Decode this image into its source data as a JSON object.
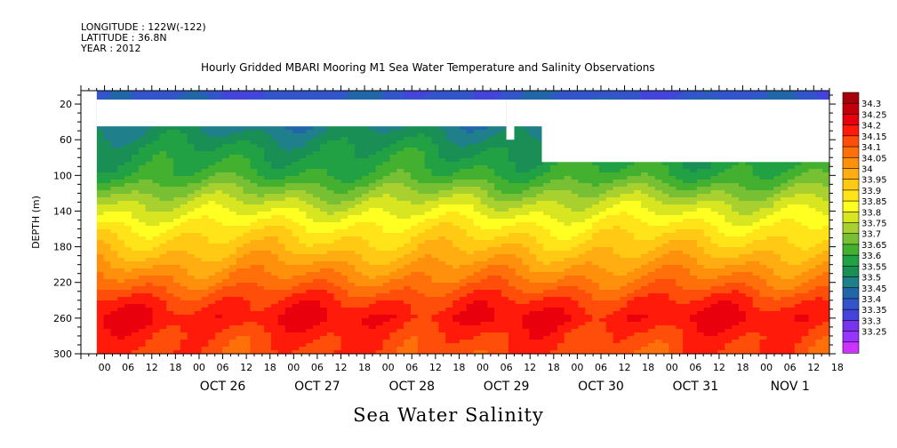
{
  "header": {
    "longitude": "LONGITUDE : 122W(-122)",
    "latitude": "LATITUDE : 36.8N",
    "year": "YEAR : 2012",
    "title": "Hourly Gridded MBARI Mooring M1 Sea Water Temperature and Salinity Observations"
  },
  "footer": {
    "variable_label": "Sea Water Salinity"
  },
  "colors": {
    "palette": [
      "#cc33ff",
      "#9933ff",
      "#7733ee",
      "#4444dd",
      "#3355cc",
      "#2266aa",
      "#1f7f8a",
      "#1a8f55",
      "#22a044",
      "#44b030",
      "#77c033",
      "#a8d02e",
      "#d8e622",
      "#ffff22",
      "#ffe41a",
      "#ffc914",
      "#ffad10",
      "#ff900c",
      "#ff700a",
      "#ff4d0a",
      "#ff1a0a",
      "#e8000c",
      "#c2000c",
      "#a80008"
    ],
    "colorbar_labels": [
      "34.3",
      "34.25",
      "34.2",
      "34.15",
      "34.1",
      "34.05",
      "34",
      "33.95",
      "33.9",
      "33.85",
      "33.8",
      "33.75",
      "33.7",
      "33.65",
      "33.6",
      "33.55",
      "33.5",
      "33.45",
      "33.4",
      "33.35",
      "33.3",
      "33.25"
    ]
  },
  "chart_data": {
    "type": "heatmap",
    "variable": "Sea Water Salinity",
    "ylabel": "DEPTH (m)",
    "y_reversed": true,
    "ylim": [
      300,
      5
    ],
    "y_ticks": [
      20,
      60,
      100,
      140,
      180,
      220,
      260,
      300
    ],
    "x_start": "2012-10-25T00:00",
    "x_end": "2012-11-01T22:00",
    "x_hour_ticks": [
      "00",
      "06",
      "12",
      "18",
      "00",
      "06",
      "12",
      "18",
      "00",
      "06",
      "12",
      "18",
      "00",
      "06",
      "12",
      "18",
      "00",
      "06",
      "12",
      "18",
      "00",
      "06",
      "12",
      "18",
      "00",
      "06",
      "12",
      "18",
      "00",
      "06",
      "12",
      "18"
    ],
    "x_day_labels": [
      "OCT 26",
      "OCT 27",
      "OCT 28",
      "OCT 29",
      "OCT 30",
      "OCT 31",
      "NOV  1"
    ],
    "data_start": "2012-10-25T04:00",
    "levels": [
      33.25,
      33.3,
      33.35,
      33.4,
      33.45,
      33.5,
      33.55,
      33.6,
      33.65,
      33.7,
      33.75,
      33.8,
      33.85,
      33.9,
      33.95,
      34,
      34.05,
      34.1,
      34.15,
      34.2,
      34.25,
      34.3
    ],
    "depth_profile": [
      {
        "depth": 10,
        "salinity": 33.42
      },
      {
        "depth": 40,
        "salinity": 33.52
      },
      {
        "depth": 70,
        "salinity": 33.6
      },
      {
        "depth": 100,
        "salinity": 33.66
      },
      {
        "depth": 130,
        "salinity": 33.8
      },
      {
        "depth": 160,
        "salinity": 33.92
      },
      {
        "depth": 180,
        "salinity": 33.98
      },
      {
        "depth": 200,
        "salinity": 34.05
      },
      {
        "depth": 220,
        "salinity": 34.12
      },
      {
        "depth": 240,
        "salinity": 34.2
      },
      {
        "depth": 260,
        "salinity": 34.25
      },
      {
        "depth": 280,
        "salinity": 34.2
      },
      {
        "depth": 300,
        "salinity": 34.18
      }
    ],
    "coverage": [
      {
        "from": "2012-10-25T04:00",
        "to": "2012-10-29T12:00",
        "gap_from_depth": 15,
        "gap_to_depth": 45
      },
      {
        "from": "2012-10-29T12:00",
        "to": "2012-10-29T14:00",
        "gap_from_depth": 15,
        "gap_to_depth": 60
      },
      {
        "from": "2012-10-29T14:00",
        "to": "2012-10-29T21:00",
        "gap_from_depth": 15,
        "gap_to_depth": 45
      },
      {
        "from": "2012-10-29T21:00",
        "to": "2012-11-01T22:00",
        "gap_from_depth": 15,
        "gap_to_depth": 85
      }
    ]
  }
}
